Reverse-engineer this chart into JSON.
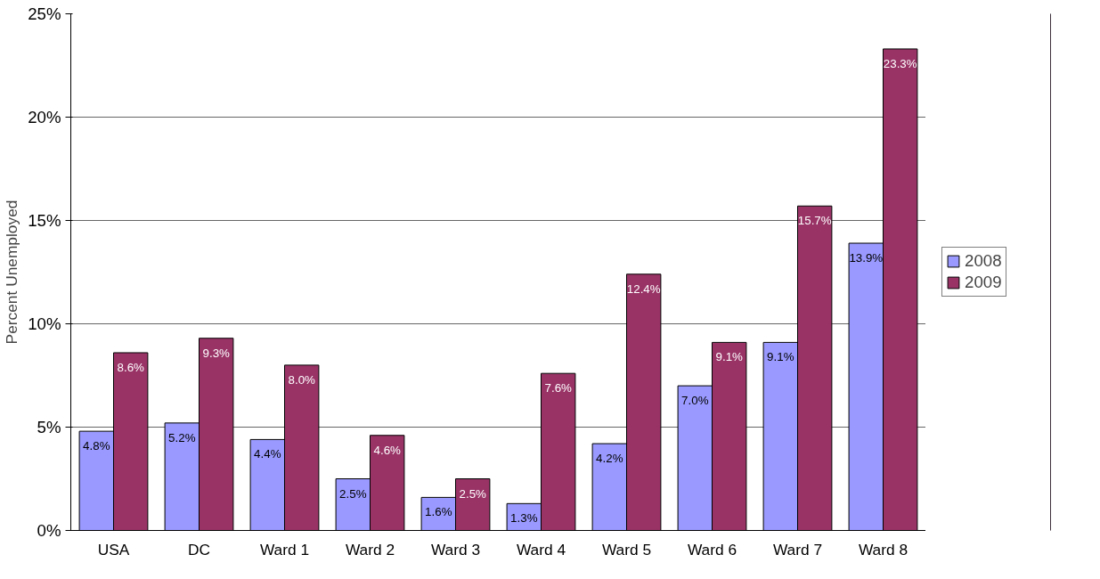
{
  "chart_data": {
    "type": "bar",
    "ylabel": "Percent Unemployed",
    "categories": [
      "USA",
      "DC",
      "Ward 1",
      "Ward 2",
      "Ward 3",
      "Ward 4",
      "Ward 5",
      "Ward 6",
      "Ward 7",
      "Ward 8"
    ],
    "series": [
      {
        "name": "2008",
        "color": "#9999ff",
        "values": [
          4.8,
          5.2,
          4.4,
          2.5,
          1.6,
          1.3,
          4.2,
          7.0,
          9.1,
          13.9
        ],
        "value_labels": [
          "4.8%",
          "5.2%",
          "4.4%",
          "2.5%",
          "1.6%",
          "1.3%",
          "4.2%",
          "7.0%",
          "9.1%",
          "13.9%"
        ]
      },
      {
        "name": "2009",
        "color": "#993366",
        "values": [
          8.6,
          9.3,
          8.0,
          4.6,
          2.5,
          7.6,
          12.4,
          9.1,
          15.7,
          23.3
        ],
        "value_labels": [
          "8.6%",
          "9.3%",
          "8.0%",
          "4.6%",
          "2.5%",
          "7.6%",
          "12.4%",
          "9.1%",
          "15.7%",
          "23.3%"
        ]
      }
    ],
    "ylim": [
      0,
      25
    ],
    "yticks": [
      {
        "value": 0,
        "label": "0%"
      },
      {
        "value": 5,
        "label": "5%"
      },
      {
        "value": 10,
        "label": "10%"
      },
      {
        "value": 15,
        "label": "15%"
      },
      {
        "value": 20,
        "label": "20%"
      },
      {
        "value": 25,
        "label": "25%"
      }
    ],
    "grid": "y",
    "legend": "right"
  }
}
